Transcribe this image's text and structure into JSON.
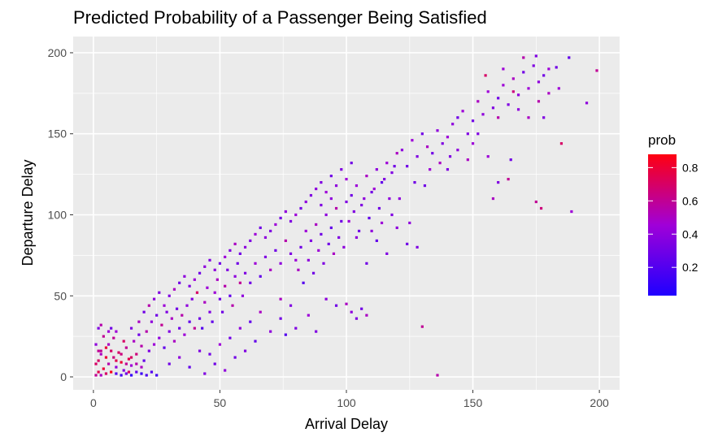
{
  "chart_data": {
    "type": "heatmap",
    "title": "Predicted Probability of a Passenger Being Satisfied",
    "xlabel": "Arrival Delay",
    "ylabel": "Departure Delay",
    "xlim": [
      -8,
      208
    ],
    "ylim": [
      -8,
      210
    ],
    "x_ticks": [
      0,
      50,
      100,
      150,
      200
    ],
    "y_ticks": [
      0,
      50,
      100,
      150,
      200
    ],
    "grid": true,
    "panel_background": "#ebebeb",
    "grid_color": "#ffffff",
    "legend": {
      "title": "prob",
      "position": "right",
      "range": [
        0.03,
        0.88
      ],
      "ticks": [
        0.2,
        0.4,
        0.6,
        0.8
      ],
      "tick_labels": [
        "0.2",
        "0.4",
        "0.6",
        "0.8"
      ],
      "low_color": "#1f00ff",
      "mid_color": "#a000d8",
      "high_color": "#ff0010"
    },
    "points": [
      [
        1,
        1,
        0.6
      ],
      [
        2,
        3,
        0.75
      ],
      [
        3,
        1,
        0.5
      ],
      [
        4,
        5,
        0.8
      ],
      [
        5,
        2,
        0.7
      ],
      [
        6,
        8,
        0.55
      ],
      [
        7,
        3,
        0.85
      ],
      [
        8,
        12,
        0.65
      ],
      [
        9,
        6,
        0.4
      ],
      [
        10,
        15,
        0.7
      ],
      [
        11,
        9,
        0.8
      ],
      [
        12,
        4,
        0.35
      ],
      [
        13,
        18,
        0.6
      ],
      [
        14,
        11,
        0.75
      ],
      [
        15,
        7,
        0.45
      ],
      [
        16,
        22,
        0.5
      ],
      [
        17,
        14,
        0.65
      ],
      [
        18,
        26,
        0.3
      ],
      [
        19,
        19,
        0.55
      ],
      [
        20,
        10,
        0.25
      ],
      [
        2,
        10,
        0.7
      ],
      [
        3,
        14,
        0.5
      ],
      [
        1,
        20,
        0.4
      ],
      [
        4,
        25,
        0.6
      ],
      [
        2,
        30,
        0.35
      ],
      [
        5,
        18,
        0.8
      ],
      [
        6,
        28,
        0.45
      ],
      [
        3,
        32,
        0.55
      ],
      [
        8,
        24,
        0.6
      ],
      [
        7,
        30,
        0.3
      ],
      [
        9,
        2,
        0.2
      ],
      [
        11,
        1,
        0.15
      ],
      [
        13,
        2,
        0.3
      ],
      [
        15,
        1,
        0.1
      ],
      [
        17,
        3,
        0.25
      ],
      [
        19,
        2,
        0.12
      ],
      [
        21,
        1,
        0.18
      ],
      [
        23,
        3,
        0.2
      ],
      [
        25,
        1,
        0.15
      ],
      [
        14,
        3,
        0.7
      ],
      [
        22,
        16,
        0.35
      ],
      [
        24,
        20,
        0.45
      ],
      [
        26,
        24,
        0.4
      ],
      [
        28,
        18,
        0.25
      ],
      [
        30,
        28,
        0.35
      ],
      [
        32,
        22,
        0.5
      ],
      [
        34,
        30,
        0.3
      ],
      [
        36,
        26,
        0.45
      ],
      [
        38,
        34,
        0.25
      ],
      [
        40,
        30,
        0.6
      ],
      [
        21,
        28,
        0.55
      ],
      [
        23,
        34,
        0.4
      ],
      [
        25,
        38,
        0.3
      ],
      [
        27,
        32,
        0.6
      ],
      [
        29,
        40,
        0.35
      ],
      [
        31,
        36,
        0.5
      ],
      [
        33,
        42,
        0.3
      ],
      [
        35,
        38,
        0.55
      ],
      [
        37,
        44,
        0.4
      ],
      [
        39,
        48,
        0.35
      ],
      [
        42,
        36,
        0.3
      ],
      [
        44,
        46,
        0.5
      ],
      [
        46,
        40,
        0.35
      ],
      [
        48,
        52,
        0.45
      ],
      [
        50,
        48,
        0.3
      ],
      [
        52,
        56,
        0.55
      ],
      [
        54,
        50,
        0.25
      ],
      [
        56,
        62,
        0.4
      ],
      [
        58,
        58,
        0.6
      ],
      [
        60,
        64,
        0.35
      ],
      [
        41,
        52,
        0.7
      ],
      [
        43,
        30,
        0.2
      ],
      [
        45,
        55,
        0.45
      ],
      [
        47,
        34,
        0.25
      ],
      [
        49,
        60,
        0.5
      ],
      [
        51,
        40,
        0.3
      ],
      [
        53,
        66,
        0.35
      ],
      [
        55,
        44,
        0.55
      ],
      [
        57,
        70,
        0.3
      ],
      [
        59,
        50,
        0.4
      ],
      [
        62,
        58,
        0.3
      ],
      [
        64,
        70,
        0.45
      ],
      [
        66,
        62,
        0.25
      ],
      [
        68,
        74,
        0.35
      ],
      [
        70,
        66,
        0.5
      ],
      [
        72,
        78,
        0.3
      ],
      [
        74,
        70,
        0.4
      ],
      [
        76,
        84,
        0.55
      ],
      [
        78,
        76,
        0.35
      ],
      [
        80,
        72,
        0.45
      ],
      [
        30,
        8,
        0.3
      ],
      [
        34,
        12,
        0.4
      ],
      [
        38,
        6,
        0.25
      ],
      [
        42,
        16,
        0.35
      ],
      [
        46,
        14,
        0.3
      ],
      [
        50,
        20,
        0.45
      ],
      [
        54,
        24,
        0.3
      ],
      [
        58,
        30,
        0.4
      ],
      [
        62,
        34,
        0.25
      ],
      [
        66,
        40,
        0.5
      ],
      [
        44,
        2,
        0.35
      ],
      [
        48,
        8,
        0.3
      ],
      [
        52,
        4,
        0.4
      ],
      [
        56,
        12,
        0.3
      ],
      [
        60,
        16,
        0.35
      ],
      [
        64,
        22,
        0.25
      ],
      [
        70,
        28,
        0.4
      ],
      [
        74,
        36,
        0.3
      ],
      [
        76,
        26,
        0.2
      ],
      [
        78,
        44,
        0.35
      ],
      [
        82,
        80,
        0.3
      ],
      [
        84,
        90,
        0.45
      ],
      [
        86,
        84,
        0.35
      ],
      [
        88,
        94,
        0.5
      ],
      [
        90,
        88,
        0.3
      ],
      [
        92,
        100,
        0.4
      ],
      [
        94,
        92,
        0.25
      ],
      [
        96,
        104,
        0.55
      ],
      [
        98,
        96,
        0.3
      ],
      [
        100,
        108,
        0.35
      ],
      [
        81,
        66,
        0.5
      ],
      [
        83,
        58,
        0.2
      ],
      [
        85,
        72,
        0.4
      ],
      [
        87,
        64,
        0.3
      ],
      [
        89,
        78,
        0.45
      ],
      [
        91,
        70,
        0.35
      ],
      [
        93,
        82,
        0.3
      ],
      [
        95,
        76,
        0.5
      ],
      [
        97,
        86,
        0.35
      ],
      [
        99,
        80,
        0.4
      ],
      [
        102,
        112,
        0.3
      ],
      [
        104,
        118,
        0.45
      ],
      [
        106,
        106,
        0.35
      ],
      [
        108,
        124,
        0.5
      ],
      [
        110,
        114,
        0.3
      ],
      [
        112,
        128,
        0.4
      ],
      [
        114,
        120,
        0.25
      ],
      [
        116,
        132,
        0.45
      ],
      [
        118,
        126,
        0.35
      ],
      [
        120,
        138,
        0.5
      ],
      [
        101,
        96,
        0.45
      ],
      [
        103,
        102,
        0.35
      ],
      [
        105,
        90,
        0.3
      ],
      [
        107,
        110,
        0.4
      ],
      [
        109,
        98,
        0.25
      ],
      [
        111,
        116,
        0.45
      ],
      [
        113,
        104,
        0.3
      ],
      [
        115,
        122,
        0.35
      ],
      [
        117,
        110,
        0.4
      ],
      [
        119,
        130,
        0.3
      ],
      [
        122,
        140,
        0.4
      ],
      [
        124,
        130,
        0.3
      ],
      [
        126,
        146,
        0.45
      ],
      [
        128,
        136,
        0.35
      ],
      [
        130,
        150,
        0.3
      ],
      [
        132,
        142,
        0.5
      ],
      [
        134,
        138,
        0.3
      ],
      [
        136,
        152,
        0.4
      ],
      [
        138,
        144,
        0.35
      ],
      [
        140,
        148,
        0.45
      ],
      [
        104,
        86,
        0.4
      ],
      [
        108,
        70,
        0.3
      ],
      [
        112,
        84,
        0.25
      ],
      [
        116,
        76,
        0.35
      ],
      [
        120,
        92,
        0.4
      ],
      [
        124,
        82,
        0.3
      ],
      [
        128,
        80,
        0.35
      ],
      [
        130,
        31,
        0.6
      ],
      [
        136,
        1,
        0.55
      ],
      [
        100,
        45,
        0.5
      ],
      [
        102,
        40,
        0.4
      ],
      [
        104,
        36,
        0.35
      ],
      [
        106,
        42,
        0.3
      ],
      [
        108,
        38,
        0.5
      ],
      [
        96,
        44,
        0.3
      ],
      [
        92,
        48,
        0.4
      ],
      [
        88,
        28,
        0.35
      ],
      [
        85,
        38,
        0.45
      ],
      [
        80,
        30,
        0.35
      ],
      [
        74,
        48,
        0.5
      ],
      [
        142,
        156,
        0.4
      ],
      [
        144,
        160,
        0.3
      ],
      [
        146,
        164,
        0.45
      ],
      [
        148,
        150,
        0.35
      ],
      [
        150,
        158,
        0.3
      ],
      [
        152,
        170,
        0.5
      ],
      [
        154,
        162,
        0.4
      ],
      [
        156,
        176,
        0.45
      ],
      [
        158,
        166,
        0.35
      ],
      [
        160,
        172,
        0.3
      ],
      [
        162,
        180,
        0.45
      ],
      [
        164,
        168,
        0.35
      ],
      [
        166,
        184,
        0.5
      ],
      [
        168,
        174,
        0.4
      ],
      [
        170,
        188,
        0.3
      ],
      [
        172,
        178,
        0.45
      ],
      [
        174,
        192,
        0.35
      ],
      [
        176,
        182,
        0.4
      ],
      [
        178,
        186,
        0.3
      ],
      [
        180,
        190,
        0.45
      ],
      [
        170,
        197,
        0.55
      ],
      [
        175,
        198,
        0.35
      ],
      [
        183,
        191,
        0.3
      ],
      [
        188,
        197,
        0.25
      ],
      [
        199,
        189,
        0.6
      ],
      [
        195,
        169,
        0.4
      ],
      [
        185,
        144,
        0.7
      ],
      [
        189,
        102,
        0.45
      ],
      [
        175,
        108,
        0.6
      ],
      [
        177,
        104,
        0.65
      ],
      [
        158,
        110,
        0.5
      ],
      [
        160,
        120,
        0.35
      ],
      [
        164,
        122,
        0.6
      ],
      [
        156,
        136,
        0.45
      ],
      [
        152,
        150,
        0.35
      ],
      [
        148,
        134,
        0.5
      ],
      [
        144,
        140,
        0.4
      ],
      [
        140,
        128,
        0.35
      ],
      [
        150,
        144,
        0.45
      ],
      [
        165,
        134,
        0.3
      ],
      [
        155,
        186,
        0.7
      ],
      [
        162,
        190,
        0.45
      ],
      [
        168,
        165,
        0.4
      ],
      [
        176,
        170,
        0.55
      ],
      [
        180,
        175,
        0.5
      ],
      [
        184,
        178,
        0.45
      ],
      [
        166,
        176,
        0.65
      ],
      [
        160,
        160,
        0.55
      ],
      [
        172,
        160,
        0.5
      ],
      [
        178,
        160,
        0.35
      ],
      [
        118,
        100,
        0.35
      ],
      [
        121,
        110,
        0.4
      ],
      [
        127,
        120,
        0.3
      ],
      [
        133,
        128,
        0.45
      ],
      [
        137,
        132,
        0.5
      ],
      [
        141,
        136,
        0.35
      ],
      [
        125,
        95,
        0.4
      ],
      [
        131,
        118,
        0.3
      ],
      [
        114,
        95,
        0.45
      ],
      [
        110,
        90,
        0.4
      ],
      [
        3,
        16,
        0.6
      ],
      [
        6,
        20,
        0.5
      ],
      [
        9,
        28,
        0.45
      ],
      [
        12,
        22,
        0.7
      ],
      [
        15,
        30,
        0.35
      ],
      [
        18,
        34,
        0.5
      ],
      [
        20,
        40,
        0.3
      ],
      [
        22,
        44,
        0.55
      ],
      [
        24,
        48,
        0.4
      ],
      [
        26,
        52,
        0.35
      ],
      [
        5,
        12,
        0.8
      ],
      [
        7,
        16,
        0.7
      ],
      [
        9,
        10,
        0.75
      ],
      [
        11,
        14,
        0.65
      ],
      [
        13,
        8,
        0.6
      ],
      [
        15,
        12,
        0.7
      ],
      [
        17,
        8,
        0.55
      ],
      [
        19,
        6,
        0.5
      ],
      [
        1,
        8,
        0.7
      ],
      [
        2,
        16,
        0.6
      ],
      [
        28,
        44,
        0.45
      ],
      [
        30,
        50,
        0.35
      ],
      [
        32,
        54,
        0.5
      ],
      [
        34,
        58,
        0.3
      ],
      [
        36,
        62,
        0.4
      ],
      [
        38,
        56,
        0.35
      ],
      [
        40,
        60,
        0.45
      ],
      [
        42,
        64,
        0.3
      ],
      [
        44,
        68,
        0.4
      ],
      [
        46,
        72,
        0.35
      ],
      [
        48,
        66,
        0.4
      ],
      [
        50,
        70,
        0.3
      ],
      [
        52,
        74,
        0.45
      ],
      [
        54,
        78,
        0.35
      ],
      [
        56,
        82,
        0.5
      ],
      [
        58,
        76,
        0.3
      ],
      [
        60,
        80,
        0.4
      ],
      [
        62,
        84,
        0.35
      ],
      [
        64,
        88,
        0.45
      ],
      [
        66,
        92,
        0.3
      ],
      [
        68,
        86,
        0.4
      ],
      [
        70,
        90,
        0.35
      ],
      [
        72,
        94,
        0.45
      ],
      [
        74,
        98,
        0.3
      ],
      [
        76,
        102,
        0.4
      ],
      [
        78,
        96,
        0.35
      ],
      [
        80,
        100,
        0.45
      ],
      [
        82,
        104,
        0.3
      ],
      [
        84,
        108,
        0.4
      ],
      [
        86,
        112,
        0.35
      ],
      [
        88,
        116,
        0.4
      ],
      [
        90,
        120,
        0.35
      ],
      [
        92,
        114,
        0.45
      ],
      [
        94,
        124,
        0.3
      ],
      [
        96,
        118,
        0.4
      ],
      [
        98,
        128,
        0.35
      ],
      [
        100,
        122,
        0.45
      ],
      [
        102,
        132,
        0.3
      ],
      [
        94,
        110,
        0.4
      ],
      [
        90,
        106,
        0.35
      ]
    ]
  }
}
